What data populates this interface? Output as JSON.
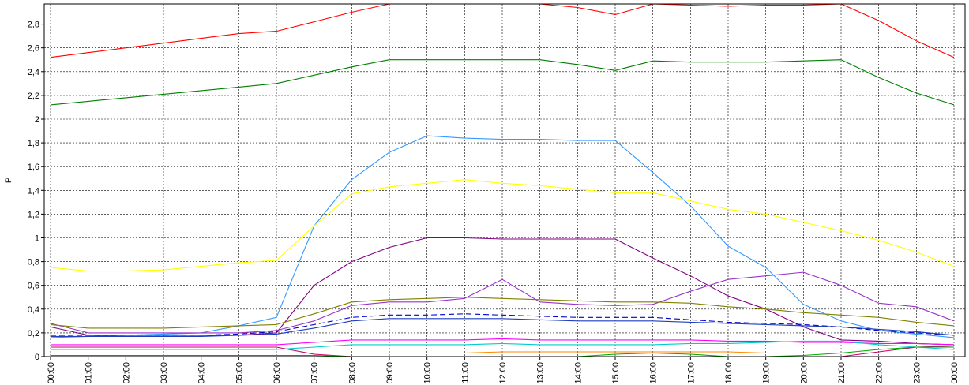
{
  "chart_data": {
    "type": "line",
    "title": "",
    "xlabel": "",
    "ylabel": "P",
    "ylim": [
      0,
      2.97
    ],
    "grid": true,
    "legend": "none",
    "x_ticks": [
      "00:00",
      "01:00",
      "02:00",
      "03:00",
      "04:00",
      "05:00",
      "06:00",
      "07:00",
      "08:00",
      "09:00",
      "10:00",
      "11:00",
      "12:00",
      "13:00",
      "14:00",
      "15:00",
      "16:00",
      "17:00",
      "18:00",
      "19:00",
      "20:00",
      "21:00",
      "22:00",
      "23:00",
      "00:00"
    ],
    "y_ticks": [
      0,
      0.2,
      0.4,
      0.6,
      0.8,
      1,
      1.2,
      1.4,
      1.6,
      1.8,
      2,
      2.2,
      2.4,
      2.6,
      2.8
    ],
    "y_tick_labels": [
      "0",
      "0,2",
      "0,4",
      "0,6",
      "0,8",
      "1",
      "1,2",
      "1,4",
      "1,6",
      "1,8",
      "2",
      "2,2",
      "2,4",
      "2,6",
      "2,8"
    ],
    "series": [
      {
        "color": "#ff0000",
        "dashed": false,
        "values": [
          2.52,
          2.56,
          2.6,
          2.64,
          2.68,
          2.72,
          2.74,
          2.82,
          2.9,
          2.97,
          2.97,
          2.97,
          2.97,
          2.97,
          2.94,
          2.88,
          2.97,
          2.96,
          2.95,
          2.96,
          2.96,
          2.97,
          2.83,
          2.66,
          2.52
        ]
      },
      {
        "color": "#008000",
        "dashed": false,
        "values": [
          2.12,
          2.15,
          2.18,
          2.21,
          2.24,
          2.27,
          2.3,
          2.37,
          2.44,
          2.5,
          2.5,
          2.5,
          2.5,
          2.5,
          2.46,
          2.41,
          2.49,
          2.48,
          2.48,
          2.48,
          2.49,
          2.5,
          2.35,
          2.22,
          2.12
        ]
      },
      {
        "color": "#3399ff",
        "dashed": false,
        "values": [
          0.16,
          0.17,
          0.18,
          0.19,
          0.2,
          0.26,
          0.33,
          1.1,
          1.49,
          1.72,
          1.86,
          1.84,
          1.83,
          1.83,
          1.82,
          1.82,
          1.55,
          1.27,
          0.93,
          0.75,
          0.44,
          0.3,
          0.22,
          0.19,
          0.16
        ]
      },
      {
        "color": "#ffff00",
        "dashed": false,
        "values": [
          0.75,
          0.72,
          0.72,
          0.73,
          0.76,
          0.79,
          0.81,
          1.1,
          1.37,
          1.43,
          1.46,
          1.49,
          1.46,
          1.44,
          1.41,
          1.38,
          1.38,
          1.31,
          1.24,
          1.2,
          1.13,
          1.06,
          0.98,
          0.88,
          0.76
        ]
      },
      {
        "color": "#800080",
        "dashed": false,
        "values": [
          0.25,
          0.18,
          0.18,
          0.18,
          0.18,
          0.18,
          0.2,
          0.6,
          0.8,
          0.92,
          1.0,
          1.0,
          0.99,
          0.99,
          0.99,
          0.99,
          0.83,
          0.68,
          0.51,
          0.4,
          0.25,
          0.14,
          0.13,
          0.11,
          0.1
        ]
      },
      {
        "color": "#9933cc",
        "dashed": false,
        "values": [
          0.28,
          0.2,
          0.2,
          0.2,
          0.2,
          0.2,
          0.22,
          0.3,
          0.43,
          0.46,
          0.46,
          0.49,
          0.65,
          0.46,
          0.44,
          0.43,
          0.44,
          0.55,
          0.65,
          0.68,
          0.71,
          0.6,
          0.45,
          0.42,
          0.3
        ]
      },
      {
        "color": "#808000",
        "dashed": false,
        "values": [
          0.27,
          0.24,
          0.24,
          0.24,
          0.25,
          0.26,
          0.27,
          0.36,
          0.46,
          0.48,
          0.49,
          0.5,
          0.49,
          0.48,
          0.47,
          0.46,
          0.46,
          0.45,
          0.42,
          0.4,
          0.37,
          0.35,
          0.33,
          0.29,
          0.26
        ]
      },
      {
        "color": "#0000cc",
        "dashed": true,
        "values": [
          0.18,
          0.18,
          0.18,
          0.18,
          0.18,
          0.19,
          0.21,
          0.27,
          0.33,
          0.35,
          0.35,
          0.36,
          0.35,
          0.34,
          0.33,
          0.33,
          0.33,
          0.31,
          0.29,
          0.28,
          0.27,
          0.25,
          0.22,
          0.2,
          0.18
        ]
      },
      {
        "color": "#1f3fbf",
        "dashed": false,
        "values": [
          0.17,
          0.17,
          0.17,
          0.17,
          0.17,
          0.18,
          0.19,
          0.24,
          0.3,
          0.32,
          0.32,
          0.32,
          0.32,
          0.31,
          0.3,
          0.3,
          0.3,
          0.29,
          0.28,
          0.27,
          0.26,
          0.25,
          0.23,
          0.21,
          0.18
        ]
      },
      {
        "color": "#ff00ff",
        "dashed": false,
        "values": [
          0.1,
          0.1,
          0.1,
          0.1,
          0.1,
          0.1,
          0.1,
          0.12,
          0.14,
          0.14,
          0.14,
          0.14,
          0.15,
          0.14,
          0.14,
          0.14,
          0.14,
          0.14,
          0.13,
          0.13,
          0.12,
          0.12,
          0.11,
          0.11,
          0.1
        ]
      },
      {
        "color": "#00cccc",
        "dashed": false,
        "values": [
          0.06,
          0.06,
          0.06,
          0.06,
          0.06,
          0.06,
          0.06,
          0.08,
          0.1,
          0.1,
          0.1,
          0.1,
          0.11,
          0.1,
          0.1,
          0.1,
          0.1,
          0.11,
          0.11,
          0.12,
          0.13,
          0.13,
          0.1,
          0.08,
          0.06
        ]
      },
      {
        "color": "#cc0066",
        "dashed": false,
        "values": [
          0.08,
          0.08,
          0.08,
          0.08,
          0.08,
          0.08,
          0.08,
          0.02,
          0.0,
          0.0,
          0.0,
          0.0,
          0.0,
          0.0,
          0.0,
          0.0,
          0.0,
          0.0,
          0.0,
          0.0,
          0.0,
          0.0,
          0.04,
          0.08,
          0.09
        ]
      },
      {
        "color": "#ff8800",
        "dashed": false,
        "values": [
          0.03,
          0.03,
          0.03,
          0.03,
          0.03,
          0.03,
          0.03,
          0.03,
          0.03,
          0.03,
          0.03,
          0.03,
          0.04,
          0.04,
          0.04,
          0.04,
          0.04,
          0.04,
          0.04,
          0.03,
          0.03,
          0.03,
          0.03,
          0.03,
          0.03
        ]
      },
      {
        "color": "#00aa00",
        "dashed": false,
        "values": [
          0.01,
          0.01,
          0.01,
          0.01,
          0.01,
          0.01,
          0.01,
          0.01,
          0.0,
          0.0,
          0.0,
          0.0,
          0.0,
          0.0,
          0.0,
          0.02,
          0.03,
          0.02,
          0.0,
          0.0,
          0.01,
          0.03,
          0.06,
          0.08,
          0.08
        ]
      }
    ]
  }
}
